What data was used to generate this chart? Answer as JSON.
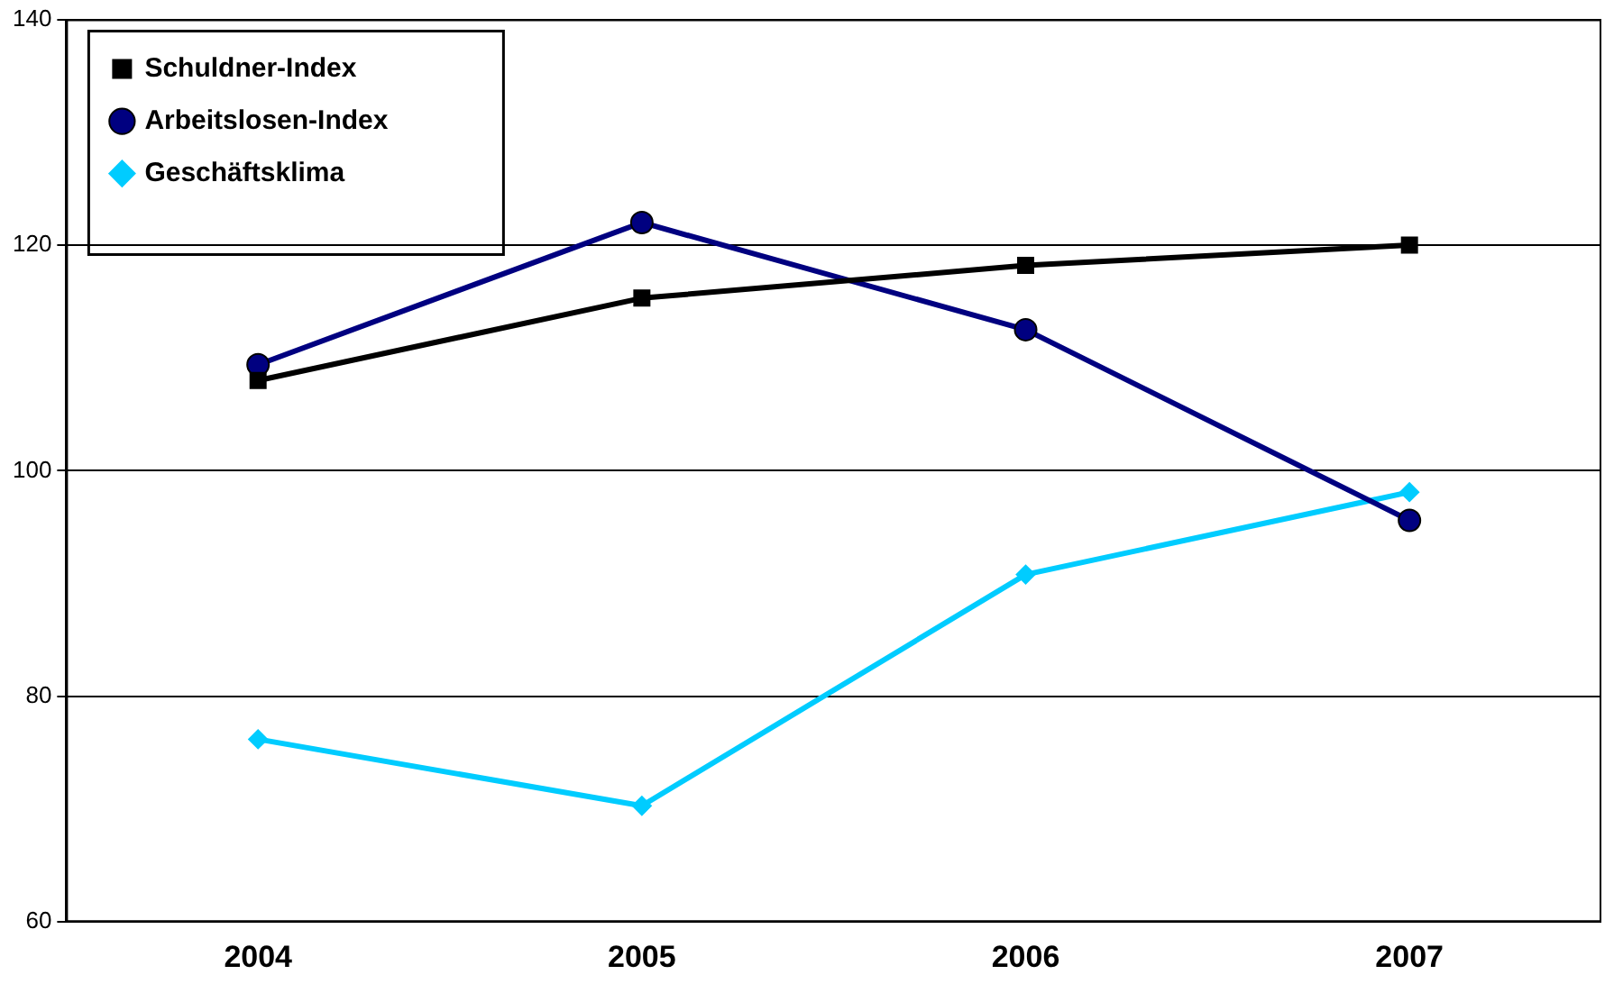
{
  "chart_data": {
    "type": "line",
    "categories": [
      "2004",
      "2005",
      "2006",
      "2007"
    ],
    "series": [
      {
        "name": "Schuldner-Index",
        "color": "#000000",
        "marker": "square",
        "values": [
          108,
          115.3,
          118.2,
          120
        ]
      },
      {
        "name": "Arbeitslosen-Index",
        "color": "#000080",
        "marker": "circle",
        "values": [
          109.4,
          122,
          112.5,
          95.6
        ]
      },
      {
        "name": "Geschäftsklima",
        "color": "#00ccff",
        "marker": "diamond",
        "values": [
          76.2,
          70.3,
          90.8,
          98.1
        ]
      }
    ],
    "ylim": [
      60,
      140
    ],
    "yticks": [
      60,
      80,
      100,
      120,
      140
    ],
    "grid": "y",
    "legend": "top left",
    "line_style": "solid"
  }
}
